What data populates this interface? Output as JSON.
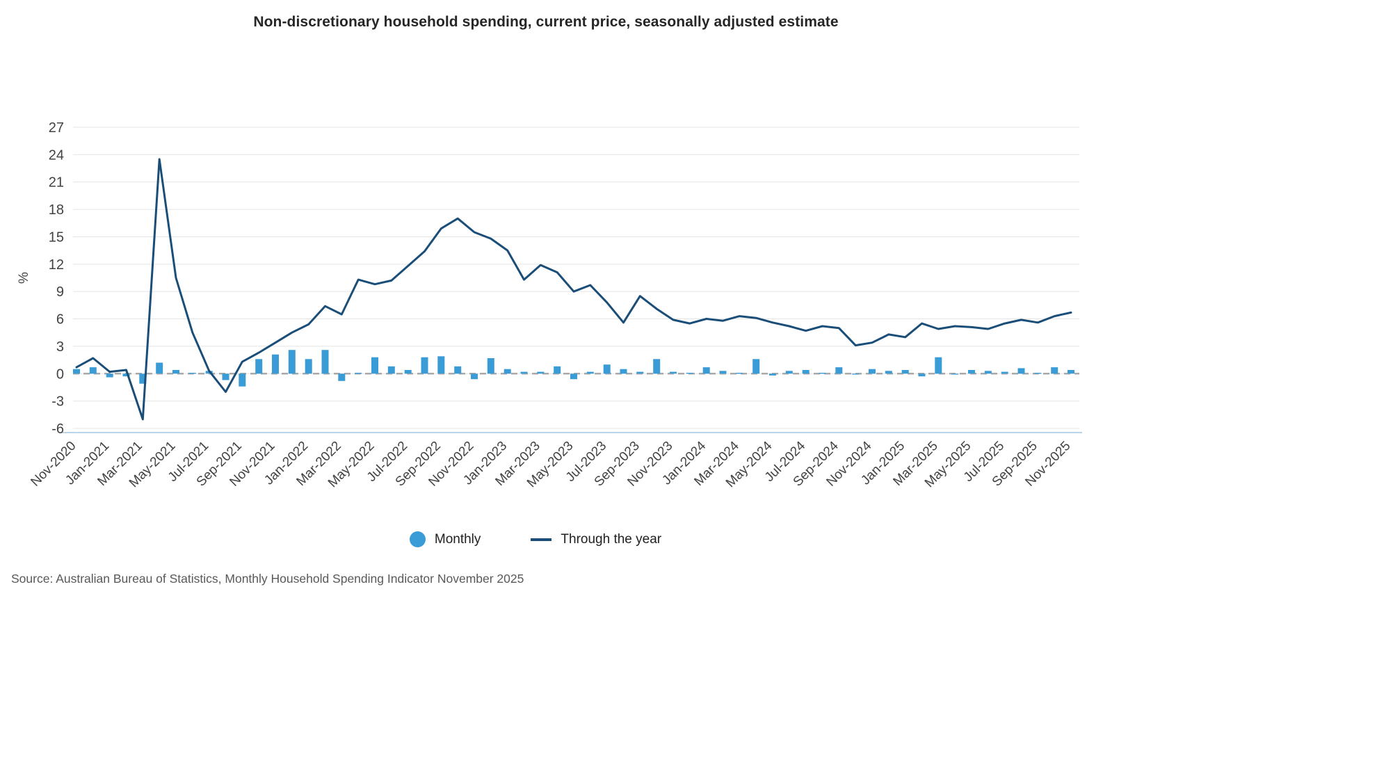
{
  "title": "Non-discretionary household spending, current price, seasonally adjusted estimate",
  "source": "Source: Australian Bureau of Statistics, Monthly Household Spending Indicator November 2025",
  "legend": {
    "monthly": "Monthly",
    "through_year": "Through the year"
  },
  "colors": {
    "bar": "#3A9CD6",
    "line": "#1A4E78",
    "grid": "#E4E4E4",
    "zero_line": "#A9A9A9",
    "tick_label": "#424242",
    "axis_line": "#A3C6E4",
    "title": "#262626",
    "source_text": "#595959"
  },
  "chart_data": {
    "type": "bar+line",
    "title": "Non-discretionary household spending, current price, seasonally adjusted estimate",
    "ylabel": "%",
    "ylim": [
      -6,
      27
    ],
    "ytick_step": 3,
    "yticks": [
      -6,
      -3,
      0,
      3,
      6,
      9,
      12,
      15,
      18,
      21,
      24,
      27
    ],
    "grid": "horizontal",
    "zero_line": "dashed",
    "legend_position": "bottom",
    "x_tick_label_every": 2,
    "x": [
      "Nov-2020",
      "Dec-2020",
      "Jan-2021",
      "Feb-2021",
      "Mar-2021",
      "Apr-2021",
      "May-2021",
      "Jun-2021",
      "Jul-2021",
      "Aug-2021",
      "Sep-2021",
      "Oct-2021",
      "Nov-2021",
      "Dec-2021",
      "Jan-2022",
      "Feb-2022",
      "Mar-2022",
      "Apr-2022",
      "May-2022",
      "Jun-2022",
      "Jul-2022",
      "Aug-2022",
      "Sep-2022",
      "Oct-2022",
      "Nov-2022",
      "Dec-2022",
      "Jan-2023",
      "Feb-2023",
      "Mar-2023",
      "Apr-2023",
      "May-2023",
      "Jun-2023",
      "Jul-2023",
      "Aug-2023",
      "Sep-2023",
      "Oct-2023",
      "Nov-2023",
      "Dec-2023",
      "Jan-2024",
      "Feb-2024",
      "Mar-2024",
      "Apr-2024",
      "May-2024",
      "Jun-2024",
      "Jul-2024",
      "Aug-2024",
      "Sep-2024",
      "Oct-2024",
      "Nov-2024",
      "Dec-2024",
      "Jan-2025",
      "Feb-2025",
      "Mar-2025",
      "Apr-2025",
      "May-2025",
      "Jun-2025",
      "Jul-2025",
      "Aug-2025",
      "Sep-2025",
      "Oct-2025",
      "Nov-2025"
    ],
    "series": [
      {
        "name": "Monthly",
        "type": "bar",
        "color": "#3A9CD6",
        "values": [
          0.5,
          0.7,
          -0.4,
          -0.3,
          -1.1,
          1.2,
          0.4,
          0.1,
          0.3,
          -0.7,
          -1.4,
          1.6,
          2.1,
          2.6,
          1.6,
          2.6,
          -0.8,
          0.1,
          1.8,
          0.8,
          0.4,
          1.8,
          1.9,
          0.8,
          -0.6,
          1.7,
          0.5,
          0.2,
          0.2,
          0.8,
          -0.6,
          0.2,
          1.0,
          0.5,
          0.2,
          1.6,
          0.2,
          0.1,
          0.7,
          0.3,
          0.1,
          1.6,
          -0.2,
          0.3,
          0.4,
          0.1,
          0.7,
          -0.1,
          0.5,
          0.3,
          0.4,
          -0.3,
          1.8,
          -0.1,
          0.4,
          0.3,
          0.2,
          0.6,
          0.1,
          0.7,
          0.4
        ]
      },
      {
        "name": "Through the year",
        "type": "line",
        "color": "#1A4E78",
        "values": [
          0.7,
          1.7,
          0.2,
          0.4,
          -5.0,
          23.5,
          10.5,
          4.5,
          0.3,
          -2.0,
          1.3,
          2.3,
          3.4,
          4.5,
          5.4,
          7.4,
          6.5,
          10.3,
          9.8,
          10.2,
          11.8,
          13.4,
          15.9,
          17.0,
          15.5,
          14.8,
          13.5,
          10.3,
          11.9,
          11.1,
          9.0,
          9.7,
          7.8,
          5.6,
          8.5,
          7.1,
          5.9,
          5.5,
          6.0,
          5.8,
          6.3,
          6.1,
          5.6,
          5.2,
          4.7,
          5.2,
          5.0,
          3.1,
          3.4,
          4.3,
          4.0,
          5.5,
          4.9,
          5.2,
          5.1,
          4.9,
          5.5,
          5.9,
          5.6,
          6.3,
          6.7
        ]
      }
    ]
  }
}
